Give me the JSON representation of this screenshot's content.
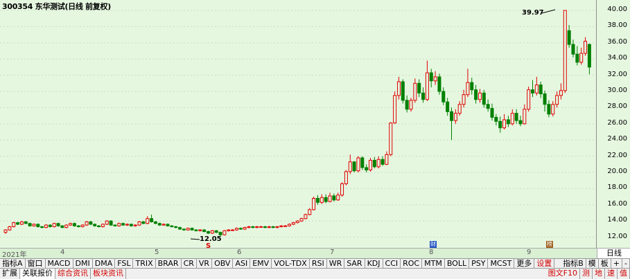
{
  "title": "300354 东华测试(日线 前复权)",
  "annotations": {
    "peak": "39.97",
    "low": "12.05",
    "s_mark": "S",
    "fin_mark": "财",
    "news_mark": "榜"
  },
  "y_ticks": [
    "40.00",
    "38.00",
    "36.00",
    "34.00",
    "32.00",
    "30.00",
    "28.00",
    "26.00",
    "24.00",
    "22.00",
    "20.00",
    "18.00",
    "16.00",
    "14.00",
    "12.00"
  ],
  "x_labels": [
    "2021年",
    "4",
    "5",
    "6",
    "7",
    "8",
    "9"
  ],
  "period": "日线",
  "tabs_row1": [
    "指标A",
    "窗口",
    "MACD",
    "DMI",
    "DMA",
    "FSL",
    "TRIX",
    "BRAR",
    "CR",
    "VR",
    "OBV",
    "ASI",
    "EMV",
    "VOL-TDX",
    "RSI",
    "WR",
    "SAR",
    "KDJ",
    "CCI",
    "ROC",
    "MTM",
    "BOLL",
    "PSY",
    "MCST",
    "更多",
    "设置"
  ],
  "tabs_row1_right": [
    "指标B",
    "模",
    "板",
    "+",
    "-"
  ],
  "tabs_row2": [
    "扩展",
    "关联报价",
    "综合资讯",
    "板块资讯"
  ],
  "tabs_row2_right": [
    "图文F10",
    "测",
    "地",
    "速",
    "值"
  ],
  "colors": {
    "up": "#e00000",
    "down": "#008000",
    "bg": "#e6f7e0"
  },
  "chart_data": {
    "type": "candlestick",
    "y_range": [
      11.2,
      40.6
    ],
    "candles": [
      [
        12.6,
        12.9,
        12.4,
        13.0
      ],
      [
        12.9,
        13.3,
        12.8,
        13.4
      ],
      [
        13.3,
        13.8,
        13.2,
        13.9
      ],
      [
        13.8,
        13.6,
        13.5,
        13.9
      ],
      [
        13.6,
        13.9,
        13.5,
        14.0
      ],
      [
        13.9,
        13.7,
        13.6,
        14.0
      ],
      [
        13.7,
        13.4,
        13.3,
        13.8
      ],
      [
        13.4,
        13.6,
        13.3,
        13.7
      ],
      [
        13.6,
        13.3,
        13.2,
        13.7
      ],
      [
        13.3,
        13.2,
        13.1,
        13.4
      ],
      [
        13.2,
        13.5,
        13.1,
        13.6
      ],
      [
        13.5,
        13.3,
        13.2,
        13.6
      ],
      [
        13.3,
        13.7,
        13.2,
        13.8
      ],
      [
        13.7,
        13.4,
        13.3,
        13.8
      ],
      [
        13.4,
        13.2,
        13.1,
        13.5
      ],
      [
        13.2,
        13.5,
        13.1,
        13.6
      ],
      [
        13.5,
        13.7,
        13.4,
        13.8
      ],
      [
        13.7,
        13.4,
        13.3,
        13.8
      ],
      [
        13.4,
        13.3,
        13.2,
        13.5
      ],
      [
        13.3,
        13.5,
        13.2,
        13.6
      ],
      [
        13.5,
        13.9,
        13.4,
        14.0
      ],
      [
        13.9,
        13.6,
        13.5,
        14.0
      ],
      [
        13.6,
        13.4,
        13.3,
        13.7
      ],
      [
        13.4,
        13.3,
        13.2,
        13.5
      ],
      [
        13.3,
        13.6,
        13.2,
        13.7
      ],
      [
        13.6,
        14.0,
        13.5,
        14.1
      ],
      [
        14.0,
        13.5,
        13.4,
        14.1
      ],
      [
        13.5,
        13.4,
        13.3,
        13.6
      ],
      [
        13.4,
        13.7,
        13.3,
        13.8
      ],
      [
        13.7,
        13.5,
        13.4,
        13.8
      ],
      [
        13.5,
        13.6,
        13.4,
        13.7
      ],
      [
        13.6,
        13.4,
        13.3,
        13.7
      ],
      [
        13.4,
        13.5,
        13.3,
        13.6
      ],
      [
        13.5,
        13.9,
        13.4,
        14.0
      ],
      [
        13.9,
        13.7,
        13.6,
        14.0
      ],
      [
        13.7,
        14.3,
        13.6,
        14.6
      ],
      [
        14.3,
        13.9,
        13.8,
        14.8
      ],
      [
        13.9,
        13.7,
        13.6,
        14.0
      ],
      [
        13.7,
        13.5,
        13.4,
        13.8
      ],
      [
        13.5,
        13.6,
        13.4,
        13.7
      ],
      [
        13.6,
        13.4,
        13.3,
        13.7
      ],
      [
        13.4,
        13.3,
        13.2,
        13.5
      ],
      [
        13.3,
        13.2,
        13.1,
        13.4
      ],
      [
        13.2,
        13.0,
        12.9,
        13.3
      ],
      [
        13.0,
        12.9,
        12.8,
        13.1
      ],
      [
        12.9,
        13.1,
        12.8,
        13.2
      ],
      [
        13.1,
        12.9,
        12.8,
        13.2
      ],
      [
        12.9,
        12.8,
        12.7,
        13.0
      ],
      [
        12.8,
        12.9,
        12.7,
        13.0
      ],
      [
        12.9,
        12.7,
        12.6,
        13.0
      ],
      [
        12.7,
        12.5,
        12.4,
        12.8
      ],
      [
        12.5,
        12.8,
        12.4,
        12.9
      ],
      [
        12.8,
        12.6,
        12.5,
        12.9
      ],
      [
        12.6,
        12.3,
        12.05,
        12.7
      ],
      [
        12.3,
        12.8,
        12.2,
        12.9
      ],
      [
        12.8,
        12.9,
        12.7,
        13.0
      ],
      [
        12.9,
        12.9,
        12.8,
        13.0
      ],
      [
        12.9,
        13.1,
        12.8,
        13.2
      ],
      [
        13.1,
        13.0,
        12.9,
        13.2
      ],
      [
        13.0,
        13.2,
        12.9,
        13.3
      ],
      [
        13.2,
        13.3,
        13.1,
        13.4
      ],
      [
        13.3,
        13.2,
        13.1,
        13.4
      ],
      [
        13.2,
        13.3,
        13.1,
        13.4
      ],
      [
        13.3,
        13.3,
        13.2,
        13.4
      ],
      [
        13.3,
        13.2,
        13.1,
        13.4
      ],
      [
        13.2,
        13.3,
        13.1,
        13.4
      ],
      [
        13.3,
        13.2,
        13.1,
        13.4
      ],
      [
        13.2,
        13.3,
        13.1,
        13.4
      ],
      [
        13.3,
        13.4,
        13.2,
        13.5
      ],
      [
        13.4,
        13.4,
        13.3,
        13.5
      ],
      [
        13.4,
        13.6,
        13.3,
        13.7
      ],
      [
        13.6,
        13.8,
        13.5,
        13.9
      ],
      [
        13.8,
        14.0,
        13.7,
        14.1
      ],
      [
        14.0,
        14.3,
        13.9,
        14.4
      ],
      [
        14.3,
        14.8,
        14.2,
        14.9
      ],
      [
        14.8,
        15.4,
        14.7,
        15.6
      ],
      [
        15.4,
        16.8,
        15.3,
        17.0
      ],
      [
        16.8,
        16.3,
        16.0,
        17.2
      ],
      [
        16.3,
        16.9,
        16.1,
        17.3
      ],
      [
        16.9,
        16.4,
        16.2,
        17.3
      ],
      [
        16.4,
        17.1,
        16.3,
        17.5
      ],
      [
        17.1,
        16.6,
        16.4,
        17.4
      ],
      [
        16.6,
        17.2,
        16.5,
        17.5
      ],
      [
        17.2,
        18.6,
        17.0,
        18.8
      ],
      [
        18.6,
        20.1,
        18.4,
        20.3
      ],
      [
        20.1,
        21.3,
        19.8,
        22.2
      ],
      [
        21.3,
        20.2,
        20.0,
        21.4
      ],
      [
        20.2,
        21.8,
        20.0,
        22.0
      ],
      [
        21.8,
        20.6,
        20.3,
        22.0
      ],
      [
        20.6,
        20.3,
        20.0,
        21.0
      ],
      [
        20.3,
        21.5,
        20.1,
        21.8
      ],
      [
        21.5,
        20.7,
        20.5,
        21.9
      ],
      [
        20.7,
        21.6,
        20.5,
        22.0
      ],
      [
        21.6,
        21.0,
        20.8,
        22.0
      ],
      [
        21.0,
        22.2,
        20.9,
        22.6
      ],
      [
        22.2,
        26.1,
        22.0,
        26.2
      ],
      [
        26.1,
        29.5,
        26.0,
        30.0
      ],
      [
        29.5,
        31.2,
        29.0,
        31.8
      ],
      [
        31.2,
        28.9,
        28.5,
        31.5
      ],
      [
        28.9,
        27.8,
        27.4,
        29.5
      ],
      [
        27.8,
        28.9,
        27.5,
        29.2
      ],
      [
        28.9,
        31.0,
        28.6,
        31.6
      ],
      [
        31.0,
        29.8,
        29.3,
        31.5
      ],
      [
        29.8,
        29.0,
        28.6,
        30.5
      ],
      [
        29.0,
        32.3,
        28.8,
        33.8
      ],
      [
        32.3,
        31.3,
        30.5,
        32.8
      ],
      [
        31.3,
        31.8,
        30.8,
        32.5
      ],
      [
        31.8,
        30.0,
        29.6,
        32.2
      ],
      [
        30.0,
        28.7,
        28.3,
        30.5
      ],
      [
        28.7,
        27.5,
        27.0,
        29.2
      ],
      [
        27.5,
        26.4,
        24.0,
        28.0
      ],
      [
        26.4,
        27.3,
        26.0,
        27.8
      ],
      [
        27.3,
        28.4,
        27.0,
        28.8
      ],
      [
        28.4,
        29.6,
        28.0,
        30.2
      ],
      [
        29.6,
        31.1,
        29.3,
        32.8
      ],
      [
        31.1,
        30.2,
        29.6,
        31.7
      ],
      [
        30.2,
        29.0,
        28.5,
        30.8
      ],
      [
        29.0,
        29.8,
        28.6,
        30.3
      ],
      [
        29.8,
        28.4,
        28.0,
        30.2
      ],
      [
        28.4,
        27.9,
        27.5,
        29.0
      ],
      [
        27.9,
        26.8,
        26.4,
        28.5
      ],
      [
        26.8,
        26.3,
        25.8,
        27.2
      ],
      [
        26.3,
        25.5,
        24.9,
        26.9
      ],
      [
        25.5,
        26.5,
        25.3,
        27.2
      ],
      [
        26.5,
        26.0,
        25.6,
        27.0
      ],
      [
        26.0,
        27.3,
        25.8,
        27.8
      ],
      [
        27.3,
        26.4,
        26.0,
        27.8
      ],
      [
        26.4,
        26.0,
        25.7,
        27.0
      ],
      [
        26.0,
        27.8,
        25.9,
        28.4
      ],
      [
        27.8,
        30.2,
        27.5,
        30.6
      ],
      [
        30.2,
        29.8,
        29.3,
        31.4
      ],
      [
        29.8,
        30.8,
        29.5,
        31.8
      ],
      [
        30.8,
        29.7,
        29.2,
        31.2
      ],
      [
        29.7,
        28.4,
        27.5,
        30.1
      ],
      [
        28.4,
        27.2,
        26.8,
        28.9
      ],
      [
        27.2,
        28.4,
        26.9,
        28.8
      ],
      [
        28.4,
        29.5,
        28.0,
        30.0
      ],
      [
        29.5,
        30.1,
        29.0,
        31.0
      ],
      [
        30.1,
        40.0,
        29.8,
        40.0
      ],
      [
        37.5,
        35.8,
        35.4,
        38.2
      ],
      [
        35.8,
        34.6,
        34.2,
        36.4
      ],
      [
        34.6,
        33.6,
        33.2,
        35.6
      ],
      [
        33.6,
        34.7,
        33.3,
        35.4
      ],
      [
        34.7,
        36.2,
        34.4,
        36.7
      ],
      [
        35.8,
        33.0,
        32.1,
        35.9
      ]
    ]
  }
}
